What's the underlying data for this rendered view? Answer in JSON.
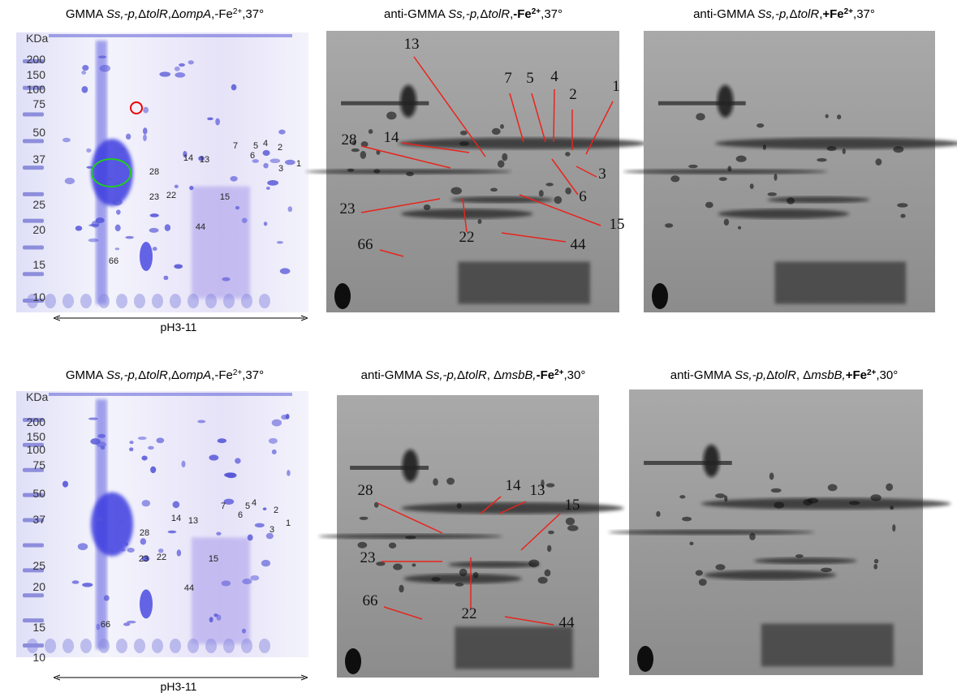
{
  "panels": [
    {
      "title": [
        "GMMA ",
        "Ss,-p,",
        "Δ",
        "tolR",
        ",Δ",
        "ompA",
        ",-Fe",
        "2+",
        ",37°"
      ],
      "unit": "KDa",
      "ladder": [
        "200",
        "150",
        "100",
        "75",
        "50",
        "37",
        "25",
        "20",
        "15",
        "10"
      ],
      "spots": [
        "7",
        "5",
        "4",
        "2",
        "6",
        "3",
        "1",
        "14",
        "13",
        "28",
        "23",
        "22",
        "15",
        "44",
        "66"
      ],
      "axis": "pH3-11"
    },
    {
      "title": [
        "anti-GMMA ",
        "Ss,-p,",
        "Δ",
        "tolR",
        ",",
        "-Fe",
        "2+",
        ",37°"
      ],
      "spots": [
        "13",
        "7",
        "5",
        "4",
        "2",
        "1",
        "14",
        "28",
        "3",
        "6",
        "23",
        "15",
        "22",
        "66",
        "44"
      ]
    },
    {
      "title": [
        "anti-GMMA ",
        "Ss,-p,",
        "Δ",
        "tolR",
        ",",
        "+Fe",
        "2+",
        ",37°"
      ]
    },
    {
      "title": [
        "GMMA ",
        "Ss,-p,",
        "Δ",
        "tolR",
        ",Δ",
        "ompA",
        ",-Fe",
        "2+",
        ",37°"
      ],
      "unit": "KDa",
      "ladder": [
        "200",
        "150",
        "100",
        "75",
        "50",
        "37",
        "25",
        "20",
        "15",
        "10"
      ],
      "spots": [
        "7",
        "5",
        "4",
        "2",
        "6",
        "3",
        "1",
        "14",
        "13",
        "28",
        "23",
        "22",
        "15",
        "44",
        "66"
      ],
      "axis": "pH3-11"
    },
    {
      "title": [
        "anti-GMMA ",
        "Ss,-p,",
        "Δ",
        "tolR",
        ", Δ",
        "msbB,",
        "-Fe",
        "2+",
        ",30°"
      ],
      "spots": [
        "14",
        "13",
        "28",
        "15",
        "23",
        "66",
        "22",
        "44"
      ]
    },
    {
      "title": [
        "anti-GMMA ",
        "Ss,-p,",
        "Δ",
        "tolR",
        ", Δ",
        "msbB,",
        "+Fe",
        "2+",
        ",30°"
      ]
    }
  ]
}
